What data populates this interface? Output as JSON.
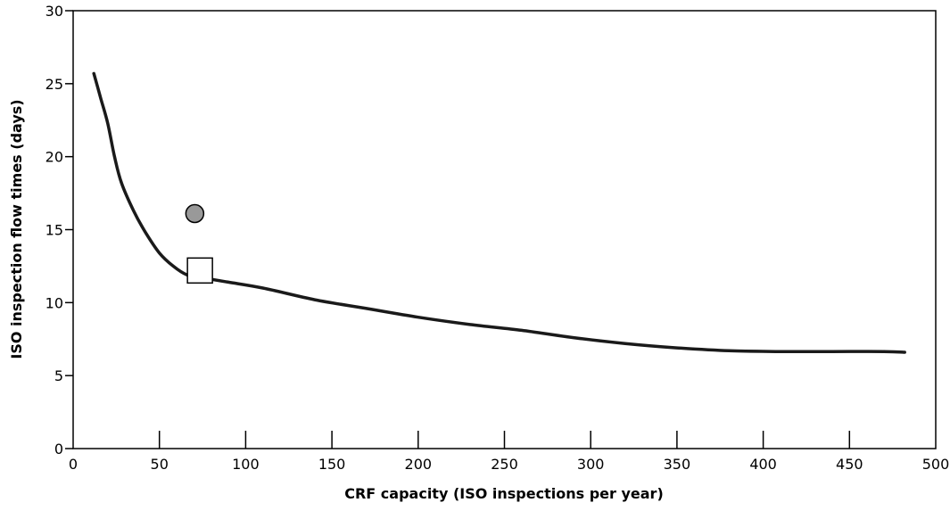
{
  "chart_data": {
    "type": "line",
    "title": "",
    "xlabel": "CRF capacity (ISO inspections per year)",
    "ylabel": "ISO inspection flow times (days)",
    "xlim": [
      0,
      500
    ],
    "ylim": [
      0,
      30
    ],
    "xticks": [
      0,
      50,
      100,
      150,
      200,
      250,
      300,
      350,
      400,
      450,
      500
    ],
    "yticks": [
      0,
      5,
      10,
      15,
      20,
      25,
      30
    ],
    "grid": false,
    "legend": "none",
    "series": [
      {
        "type": "line",
        "color": "#1a1a1a",
        "x": [
          12,
          16,
          20,
          24,
          28,
          35,
          42,
          50,
          58,
          66,
          75,
          90,
          110,
          140,
          170,
          200,
          230,
          260,
          290,
          320,
          350,
          380,
          410,
          440,
          470,
          482
        ],
        "y": [
          25.7,
          24.0,
          22.3,
          20.0,
          18.2,
          16.3,
          14.8,
          13.4,
          12.5,
          11.9,
          11.7,
          11.4,
          11.0,
          10.2,
          9.6,
          9.0,
          8.5,
          8.1,
          7.6,
          7.2,
          6.9,
          6.7,
          6.65,
          6.65,
          6.65,
          6.6
        ]
      },
      {
        "type": "scatter",
        "marker": "circle",
        "color": "#999999",
        "x": [
          70.5
        ],
        "y": [
          16.1
        ]
      },
      {
        "type": "scatter",
        "marker": "square",
        "color": "#ffffff",
        "x": [
          73.5
        ],
        "y": [
          12.2
        ]
      }
    ]
  }
}
